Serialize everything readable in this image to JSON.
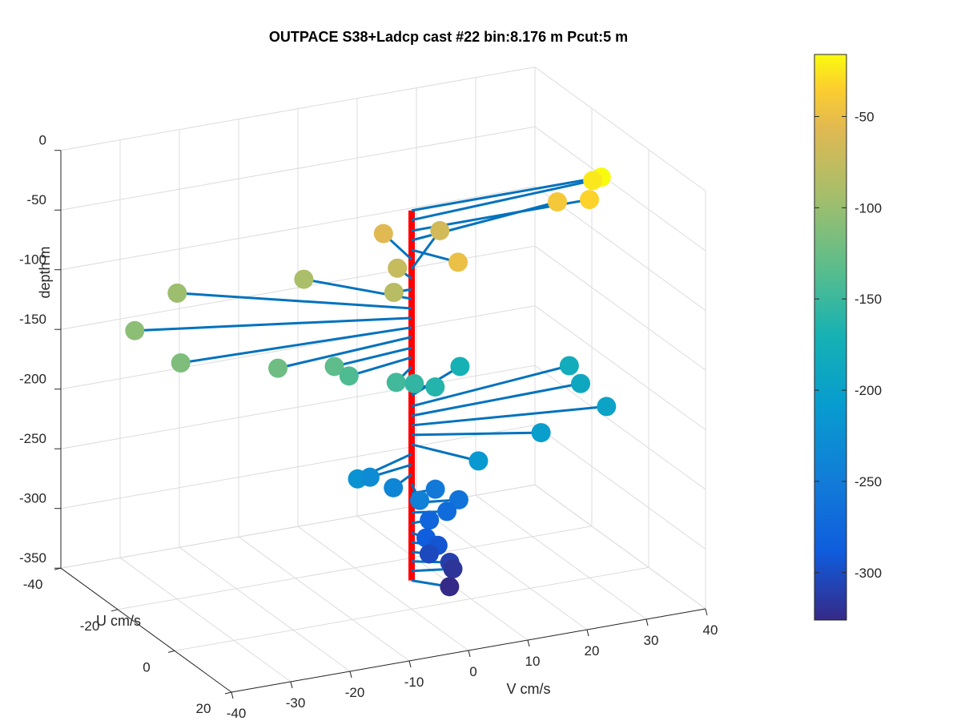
{
  "figure": {
    "title": "OUTPACE S38+Ladcp cast #22 bin:8.176 m  Pcut:5 m"
  },
  "chart_data": {
    "type": "scatter",
    "subtype": "3d-quiver",
    "title": "OUTPACE S38+Ladcp cast #22 bin:8.176 m  Pcut:5 m",
    "xlabel": "V cm/s",
    "ylabel": "U cm/s",
    "zlabel": "depth m",
    "xlim": [
      -40,
      40
    ],
    "ylim": [
      -40,
      20
    ],
    "zlim": [
      -350,
      0
    ],
    "xticks": [
      "-40",
      "-30",
      "-20",
      "-10",
      "0",
      "10",
      "20",
      "30",
      "40"
    ],
    "yticks": [
      "-40",
      "-20",
      "0",
      "20"
    ],
    "zticks": [
      "0",
      "-50",
      "-100",
      "-150",
      "-200",
      "-250",
      "-300",
      "-350"
    ],
    "grid": true,
    "colorbar": {
      "colormap": "parula",
      "range": [
        -326,
        -16
      ],
      "ticks": [
        "-50",
        "-100",
        "-150",
        "-200",
        "-250",
        "-300"
      ],
      "tick_values": [
        -50,
        -100,
        -150,
        -200,
        -250,
        -300
      ]
    },
    "profile_line_color": "#ff0000",
    "vector_color": "#0072bd",
    "series": [
      {
        "points": [
          {
            "depth": -16,
            "v": 32,
            "u": 0
          },
          {
            "depth": -24,
            "v": 32,
            "u": -3
          },
          {
            "depth": -33,
            "v": 30,
            "u": 0
          },
          {
            "depth": -41,
            "v": 27,
            "u": -5
          },
          {
            "depth": -49,
            "v": 4,
            "u": 8
          },
          {
            "depth": -57,
            "v": 1,
            "u": -12
          },
          {
            "depth": -65,
            "v": 11,
            "u": -13
          },
          {
            "depth": -73,
            "v": 0,
            "u": -5
          },
          {
            "depth": -82,
            "v": -3,
            "u": 0
          },
          {
            "depth": -90,
            "v": -11,
            "u": -15
          },
          {
            "depth": -98,
            "v": -29,
            "u": -22
          },
          {
            "depth": -106,
            "v": -40,
            "u": -14
          },
          {
            "depth": -114,
            "v": -38,
            "u": -2
          },
          {
            "depth": -122,
            "v": -24,
            "u": 3
          },
          {
            "depth": -131,
            "v": -14,
            "u": 2
          },
          {
            "depth": -139,
            "v": -12,
            "u": 3
          },
          {
            "depth": -147,
            "v": -5,
            "u": 5
          },
          {
            "depth": -155,
            "v": -1,
            "u": 3
          },
          {
            "depth": -163,
            "v": 3,
            "u": 2
          },
          {
            "depth": -171,
            "v": 12,
            "u": -8
          },
          {
            "depth": -180,
            "v": 29,
            "u": -5
          },
          {
            "depth": -188,
            "v": 29,
            "u": -1
          },
          {
            "depth": -196,
            "v": 30,
            "u": 6
          },
          {
            "depth": -204,
            "v": 18,
            "u": 8
          },
          {
            "depth": -212,
            "v": 6,
            "u": 11
          },
          {
            "depth": -220,
            "v": -12,
            "u": 6
          },
          {
            "depth": -229,
            "v": -8,
            "u": 2
          },
          {
            "depth": -237,
            "v": -5,
            "u": 4
          },
          {
            "depth": -245,
            "v": -2,
            "u": 7
          },
          {
            "depth": -253,
            "v": 4,
            "u": 0
          },
          {
            "depth": -261,
            "v": 7,
            "u": 2
          },
          {
            "depth": -269,
            "v": 5,
            "u": 2
          },
          {
            "depth": -278,
            "v": 3,
            "u": 0
          },
          {
            "depth": -286,
            "v": 1,
            "u": 3
          },
          {
            "depth": -294,
            "v": 3,
            "u": 3
          },
          {
            "depth": -302,
            "v": 2,
            "u": 2
          },
          {
            "depth": -310,
            "v": 5,
            "u": 3
          },
          {
            "depth": -318,
            "v": 6,
            "u": 2
          },
          {
            "depth": -326,
            "v": 4,
            "u": 5
          }
        ]
      }
    ]
  }
}
